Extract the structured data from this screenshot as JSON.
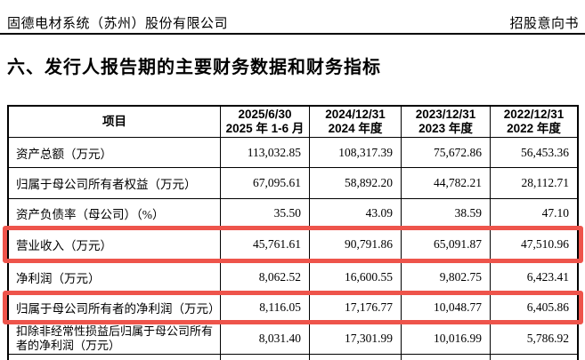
{
  "page": {
    "header_left": "固德电材系统（苏州）股份有限公司",
    "header_right": "招股意向书",
    "section_title": "六、发行人报告期的主要财务数据和财务指标"
  },
  "table": {
    "columns": [
      {
        "label": "项目"
      },
      {
        "line1": "2025/6/30",
        "line2": "2025 年 1-6 月"
      },
      {
        "line1": "2024/12/31",
        "line2": "2024 年度"
      },
      {
        "line1": "2023/12/31",
        "line2": "2023 年度"
      },
      {
        "line1": "2022/12/31",
        "line2": "2022 年度"
      }
    ],
    "rows": [
      {
        "label": "资产总额（万元）",
        "values": [
          "113,032.85",
          "108,317.39",
          "75,672.86",
          "56,453.36"
        ],
        "highlighted": false
      },
      {
        "label": "归属于母公司所有者权益（万元）",
        "values": [
          "67,095.61",
          "58,892.20",
          "44,782.21",
          "28,112.71"
        ],
        "highlighted": false
      },
      {
        "label": "资产负债率（母公司）（%）",
        "values": [
          "35.50",
          "43.09",
          "38.59",
          "47.10"
        ],
        "highlighted": false
      },
      {
        "label": "营业收入（万元）",
        "values": [
          "45,761.61",
          "90,791.86",
          "65,091.87",
          "47,510.96"
        ],
        "highlighted": true
      },
      {
        "label": "净利润（万元）",
        "values": [
          "8,062.52",
          "16,600.55",
          "9,802.75",
          "6,423.41"
        ],
        "highlighted": false
      },
      {
        "label": "归属于母公司所有者的净利润（万元）",
        "values": [
          "8,116.05",
          "17,176.77",
          "10,048.77",
          "6,405.86"
        ],
        "highlighted": true
      },
      {
        "label": "扣除非经常性损益后归属于母公司所有者的净利润（万元）",
        "values": [
          "8,031.40",
          "17,301.99",
          "10,016.99",
          "5,786.92"
        ],
        "highlighted": false
      }
    ]
  },
  "colors": {
    "highlight": "#ee544b"
  }
}
